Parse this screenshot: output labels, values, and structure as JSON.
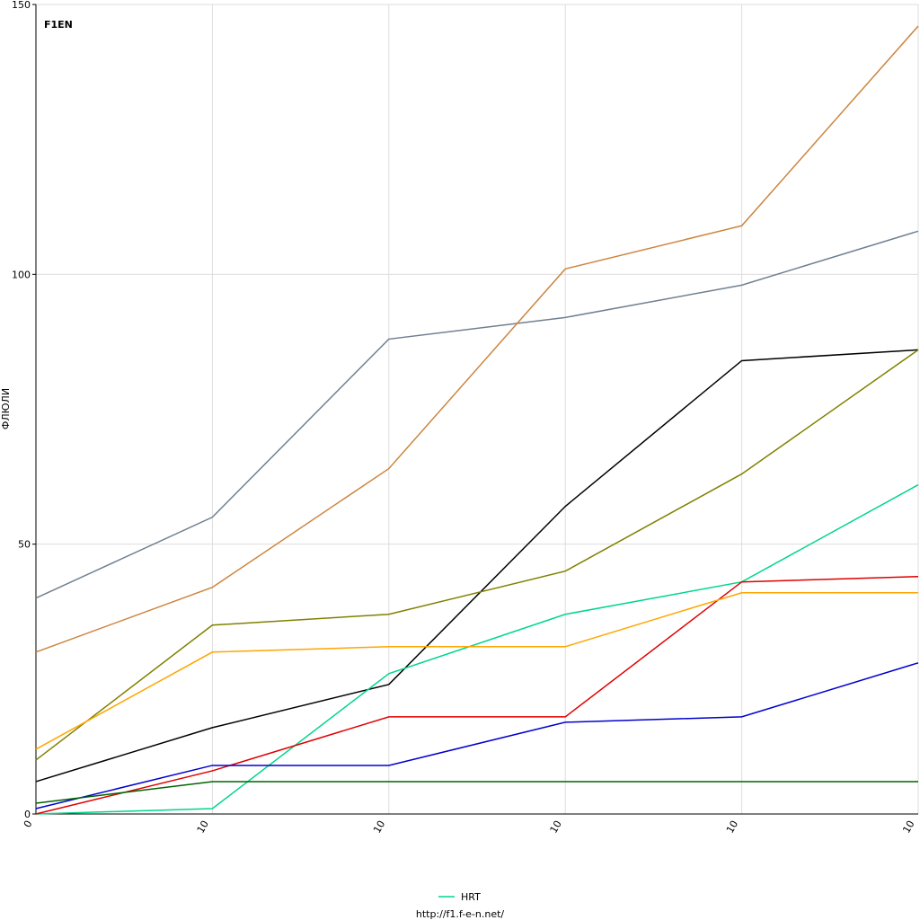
{
  "chart_data": {
    "type": "line",
    "logo": "F1EN",
    "ylabel": "ФЛЮЛИ",
    "footer": "http://f1.f-e-n.net/",
    "categories": [
      "0",
      "10",
      "10",
      "10",
      "10",
      "10"
    ],
    "ylim": [
      0,
      150
    ],
    "yticks": [
      0,
      50,
      100,
      150
    ],
    "grid": true,
    "series": [
      {
        "color": "#708090",
        "values": [
          40,
          55,
          88,
          92,
          98,
          108
        ]
      },
      {
        "color": "#cd853f",
        "values": [
          30,
          42,
          64,
          101,
          109,
          146
        ]
      },
      {
        "color": "#000000",
        "values": [
          6,
          16,
          24,
          57,
          84,
          86
        ]
      },
      {
        "color": "#808000",
        "values": [
          10,
          35,
          37,
          45,
          63,
          86
        ]
      },
      {
        "name": "HRT",
        "color": "#00d68a",
        "values": [
          0,
          1,
          26,
          37,
          43,
          61
        ]
      },
      {
        "color": "#e00000",
        "values": [
          0,
          8,
          18,
          18,
          43,
          44
        ]
      },
      {
        "color": "#ffa500",
        "values": [
          12,
          30,
          31,
          31,
          41,
          41
        ]
      },
      {
        "color": "#0000cd",
        "values": [
          1,
          9,
          9,
          17,
          18,
          28
        ]
      },
      {
        "color": "#006400",
        "values": [
          2,
          6,
          6,
          6,
          6,
          6
        ]
      }
    ]
  }
}
